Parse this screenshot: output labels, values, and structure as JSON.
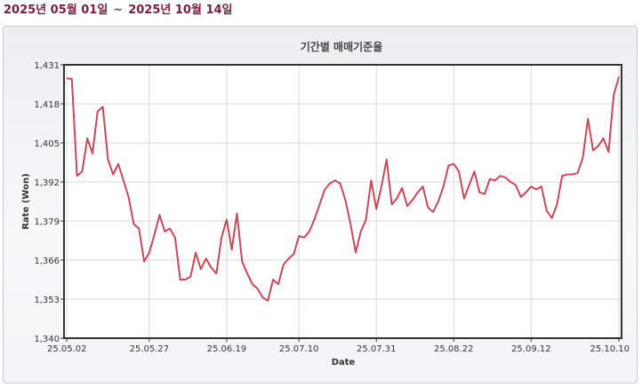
{
  "period": {
    "start": "2025년 05월 01일",
    "separator": "~",
    "end": "2025년 10월 14일"
  },
  "colors": {
    "line": "#c8495a",
    "period_text": "#7a1f3d",
    "grid": "#d6d9de",
    "axis": "#333333"
  },
  "chart_data": {
    "type": "line",
    "title": "기간별 매매기준율",
    "xlabel": "Date",
    "ylabel": "Rate (Won)",
    "ylim": [
      1340,
      1431
    ],
    "yticks": [
      "1,431",
      "1,418",
      "1,405",
      "1,392",
      "1,379",
      "1,366",
      "1,353",
      "1,340"
    ],
    "ytick_values": [
      1431,
      1418,
      1405,
      1392,
      1379,
      1366,
      1353,
      1340
    ],
    "xticks": [
      "25.05.02",
      "25.05.27",
      "25.06.19",
      "25.07.10",
      "25.07.31",
      "25.08.22",
      "25.09.12",
      "25.10.10"
    ],
    "xtick_index": [
      0,
      16,
      31,
      45,
      60,
      75,
      90,
      107
    ],
    "grid": true,
    "legend": "none",
    "series": [
      {
        "values": [
          1426.5,
          1426.3,
          1394.0,
          1395.5,
          1406.5,
          1401.5,
          1415.5,
          1417.0,
          1399.5,
          1394.5,
          1398.0,
          1392.5,
          1387.0,
          1378.0,
          1376.5,
          1365.5,
          1368.5,
          1374.5,
          1381.0,
          1375.5,
          1376.5,
          1373.5,
          1359.5,
          1359.5,
          1360.5,
          1368.5,
          1363.0,
          1366.5,
          1363.5,
          1361.5,
          1373.5,
          1379.5,
          1369.5,
          1381.5,
          1365.5,
          1361.5,
          1358.0,
          1356.5,
          1353.5,
          1352.5,
          1359.5,
          1358.0,
          1364.5,
          1366.5,
          1368.0,
          1374.0,
          1373.5,
          1375.5,
          1379.5,
          1384.5,
          1389.5,
          1391.5,
          1392.5,
          1391.5,
          1386.0,
          1378.0,
          1368.5,
          1375.5,
          1379.5,
          1392.5,
          1383.0,
          1390.5,
          1399.5,
          1384.5,
          1386.5,
          1390.0,
          1384.0,
          1386.0,
          1388.5,
          1390.5,
          1383.5,
          1382.0,
          1385.5,
          1390.5,
          1397.5,
          1398.0,
          1395.5,
          1386.5,
          1391.0,
          1395.5,
          1388.5,
          1388.0,
          1393.0,
          1392.5,
          1394.0,
          1393.5,
          1392.0,
          1391.0,
          1387.0,
          1388.5,
          1390.5,
          1389.5,
          1390.5,
          1382.5,
          1380.0,
          1384.5,
          1394.0,
          1394.5,
          1394.5,
          1395.0,
          1400.0,
          1413.0,
          1402.5,
          1404.0,
          1406.5,
          1402.0,
          1421.0,
          1427.0
        ]
      }
    ]
  }
}
